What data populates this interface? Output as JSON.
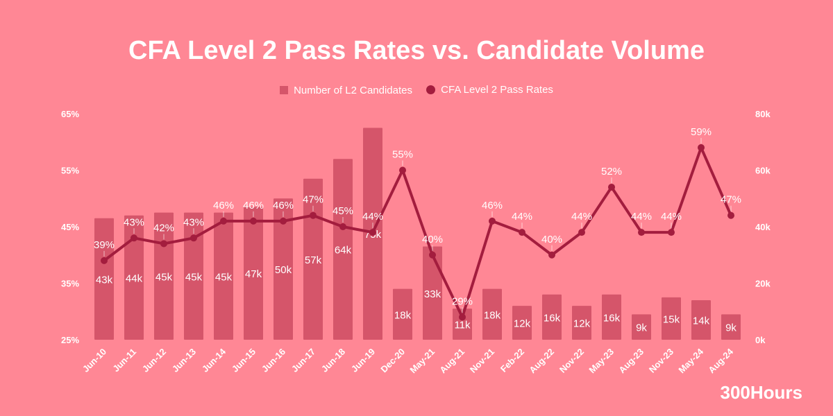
{
  "chart_data": {
    "type": "bar",
    "title": "CFA Level 2 Pass Rates vs. Candidate Volume",
    "categories": [
      "Jun-10",
      "Jun-11",
      "Jun-12",
      "Jun-13",
      "Jun-14",
      "Jun-15",
      "Jun-16",
      "Jun-17",
      "Jun-18",
      "Jun-19",
      "Dec-20",
      "May-21",
      "Aug-21",
      "Nov-21",
      "Feb-22",
      "Aug-22",
      "Nov-22",
      "May-23",
      "Aug-23",
      "Nov-23",
      "May-24",
      "Aug-24"
    ],
    "series": [
      {
        "name": "Number of L2 Candidates",
        "type": "bar",
        "axis": "right",
        "unit": "k",
        "color": "#d5556a",
        "values": [
          43,
          44,
          45,
          45,
          45,
          47,
          50,
          57,
          64,
          75,
          18,
          33,
          11,
          18,
          12,
          16,
          12,
          16,
          9,
          15,
          14,
          9
        ]
      },
      {
        "name": "CFA Level 2 Pass Rates",
        "type": "line",
        "axis": "left",
        "unit": "%",
        "color": "#a31d3e",
        "values": [
          39,
          43,
          42,
          43,
          46,
          46,
          46,
          47,
          45,
          44,
          55,
          40,
          29,
          46,
          44,
          40,
          44,
          52,
          44,
          44,
          59,
          47
        ]
      }
    ],
    "left_axis": {
      "ylim": [
        25,
        65
      ],
      "ticks": [
        "25%",
        "35%",
        "45%",
        "55%",
        "65%"
      ]
    },
    "right_axis": {
      "ylim": [
        0,
        80
      ],
      "ticks": [
        "0k",
        "20k",
        "40k",
        "60k",
        "80k"
      ]
    },
    "legend": "top",
    "grid": false
  },
  "background": "#ff8795",
  "brand": "300Hours"
}
